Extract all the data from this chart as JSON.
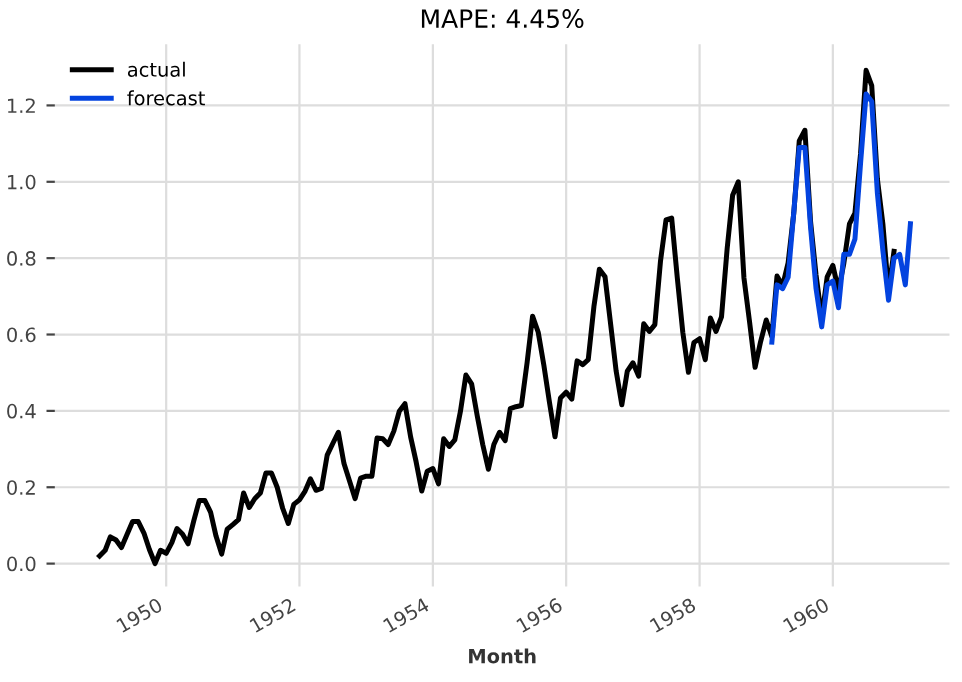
{
  "chart_data": {
    "type": "line",
    "title": "MAPE: 4.45%",
    "xlabel": "Month",
    "series": [
      {
        "name": "actual",
        "color": "#000000",
        "x": [
          "1949-01",
          "1949-02",
          "1949-03",
          "1949-04",
          "1949-05",
          "1949-06",
          "1949-07",
          "1949-08",
          "1949-09",
          "1949-10",
          "1949-11",
          "1949-12",
          "1950-01",
          "1950-02",
          "1950-03",
          "1950-04",
          "1950-05",
          "1950-06",
          "1950-07",
          "1950-08",
          "1950-09",
          "1950-10",
          "1950-11",
          "1950-12",
          "1951-01",
          "1951-02",
          "1951-03",
          "1951-04",
          "1951-05",
          "1951-06",
          "1951-07",
          "1951-08",
          "1951-09",
          "1951-10",
          "1951-11",
          "1951-12",
          "1952-01",
          "1952-02",
          "1952-03",
          "1952-04",
          "1952-05",
          "1952-06",
          "1952-07",
          "1952-08",
          "1952-09",
          "1952-10",
          "1952-11",
          "1952-12",
          "1953-01",
          "1953-02",
          "1953-03",
          "1953-04",
          "1953-05",
          "1953-06",
          "1953-07",
          "1953-08",
          "1953-09",
          "1953-10",
          "1953-11",
          "1953-12",
          "1954-01",
          "1954-02",
          "1954-03",
          "1954-04",
          "1954-05",
          "1954-06",
          "1954-07",
          "1954-08",
          "1954-09",
          "1954-10",
          "1954-11",
          "1954-12",
          "1955-01",
          "1955-02",
          "1955-03",
          "1955-04",
          "1955-05",
          "1955-06",
          "1955-07",
          "1955-08",
          "1955-09",
          "1955-10",
          "1955-11",
          "1955-12",
          "1956-01",
          "1956-02",
          "1956-03",
          "1956-04",
          "1956-05",
          "1956-06",
          "1956-07",
          "1956-08",
          "1956-09",
          "1956-10",
          "1956-11",
          "1956-12",
          "1957-01",
          "1957-02",
          "1957-03",
          "1957-04",
          "1957-05",
          "1957-06",
          "1957-07",
          "1957-08",
          "1957-09",
          "1957-10",
          "1957-11",
          "1957-12",
          "1958-01",
          "1958-02",
          "1958-03",
          "1958-04",
          "1958-05",
          "1958-06",
          "1958-07",
          "1958-08",
          "1958-09",
          "1958-10",
          "1958-11",
          "1958-12",
          "1959-01",
          "1959-02",
          "1959-03",
          "1959-04",
          "1959-05",
          "1959-06",
          "1959-07",
          "1959-08",
          "1959-09",
          "1959-10",
          "1959-11",
          "1959-12",
          "1960-01",
          "1960-02",
          "1960-03",
          "1960-04",
          "1960-05",
          "1960-06",
          "1960-07",
          "1960-08",
          "1960-09",
          "1960-10",
          "1960-11",
          "1960-12"
        ],
        "values": [
          0.02,
          0.035,
          0.07,
          0.062,
          0.042,
          0.077,
          0.11,
          0.11,
          0.08,
          0.037,
          0.0,
          0.035,
          0.027,
          0.055,
          0.092,
          0.077,
          0.052,
          0.112,
          0.165,
          0.165,
          0.135,
          0.072,
          0.025,
          0.09,
          0.102,
          0.115,
          0.185,
          0.147,
          0.17,
          0.185,
          0.237,
          0.237,
          0.2,
          0.145,
          0.105,
          0.155,
          0.167,
          0.19,
          0.222,
          0.192,
          0.197,
          0.284,
          0.314,
          0.344,
          0.262,
          0.217,
          0.17,
          0.224,
          0.229,
          0.229,
          0.329,
          0.327,
          0.312,
          0.347,
          0.399,
          0.419,
          0.332,
          0.267,
          0.19,
          0.242,
          0.249,
          0.209,
          0.327,
          0.307,
          0.324,
          0.399,
          0.494,
          0.471,
          0.387,
          0.312,
          0.247,
          0.312,
          0.344,
          0.322,
          0.406,
          0.411,
          0.414,
          0.526,
          0.648,
          0.606,
          0.519,
          0.424,
          0.332,
          0.434,
          0.449,
          0.431,
          0.531,
          0.521,
          0.534,
          0.673,
          0.771,
          0.751,
          0.626,
          0.504,
          0.416,
          0.504,
          0.526,
          0.491,
          0.628,
          0.608,
          0.626,
          0.793,
          0.9,
          0.905,
          0.748,
          0.606,
          0.501,
          0.579,
          0.589,
          0.534,
          0.643,
          0.608,
          0.646,
          0.825,
          0.965,
          1.0,
          0.748,
          0.636,
          0.514,
          0.581,
          0.638,
          0.594,
          0.753,
          0.728,
          0.788,
          0.918,
          1.107,
          1.135,
          0.895,
          0.756,
          0.643,
          0.751,
          0.781,
          0.716,
          0.786,
          0.89,
          0.918,
          1.075,
          1.292,
          1.252,
          1.007,
          0.89,
          0.713,
          0.818
        ]
      },
      {
        "name": "forecast",
        "color": "#0343df",
        "x": [
          "1959-02",
          "1959-03",
          "1959-04",
          "1959-05",
          "1959-06",
          "1959-07",
          "1959-08",
          "1959-09",
          "1959-10",
          "1959-11",
          "1959-12",
          "1960-01",
          "1960-02",
          "1960-03",
          "1960-04",
          "1960-05",
          "1960-06",
          "1960-07",
          "1960-08",
          "1960-09",
          "1960-10",
          "1960-11",
          "1960-12",
          "1961-01",
          "1961-02",
          "1961-03"
        ],
        "values": [
          0.58,
          0.73,
          0.72,
          0.75,
          0.92,
          1.09,
          1.09,
          0.88,
          0.72,
          0.62,
          0.73,
          0.74,
          0.67,
          0.81,
          0.81,
          0.85,
          1.05,
          1.23,
          1.21,
          0.97,
          0.82,
          0.69,
          0.8,
          0.81,
          0.73,
          0.89
        ]
      }
    ],
    "xlim": [
      "1948-05",
      "1961-10"
    ],
    "xticks": [
      "1950",
      "1952",
      "1954",
      "1956",
      "1958",
      "1960"
    ],
    "ylim": [
      -0.06,
      1.36
    ],
    "yticks": [
      {
        "value": 0,
        "label": "0.0"
      },
      0.2,
      0.4,
      0.6,
      0.8,
      {
        "value": 1,
        "label": "1.0"
      },
      1.2
    ],
    "grid": true,
    "legend": "top left"
  }
}
